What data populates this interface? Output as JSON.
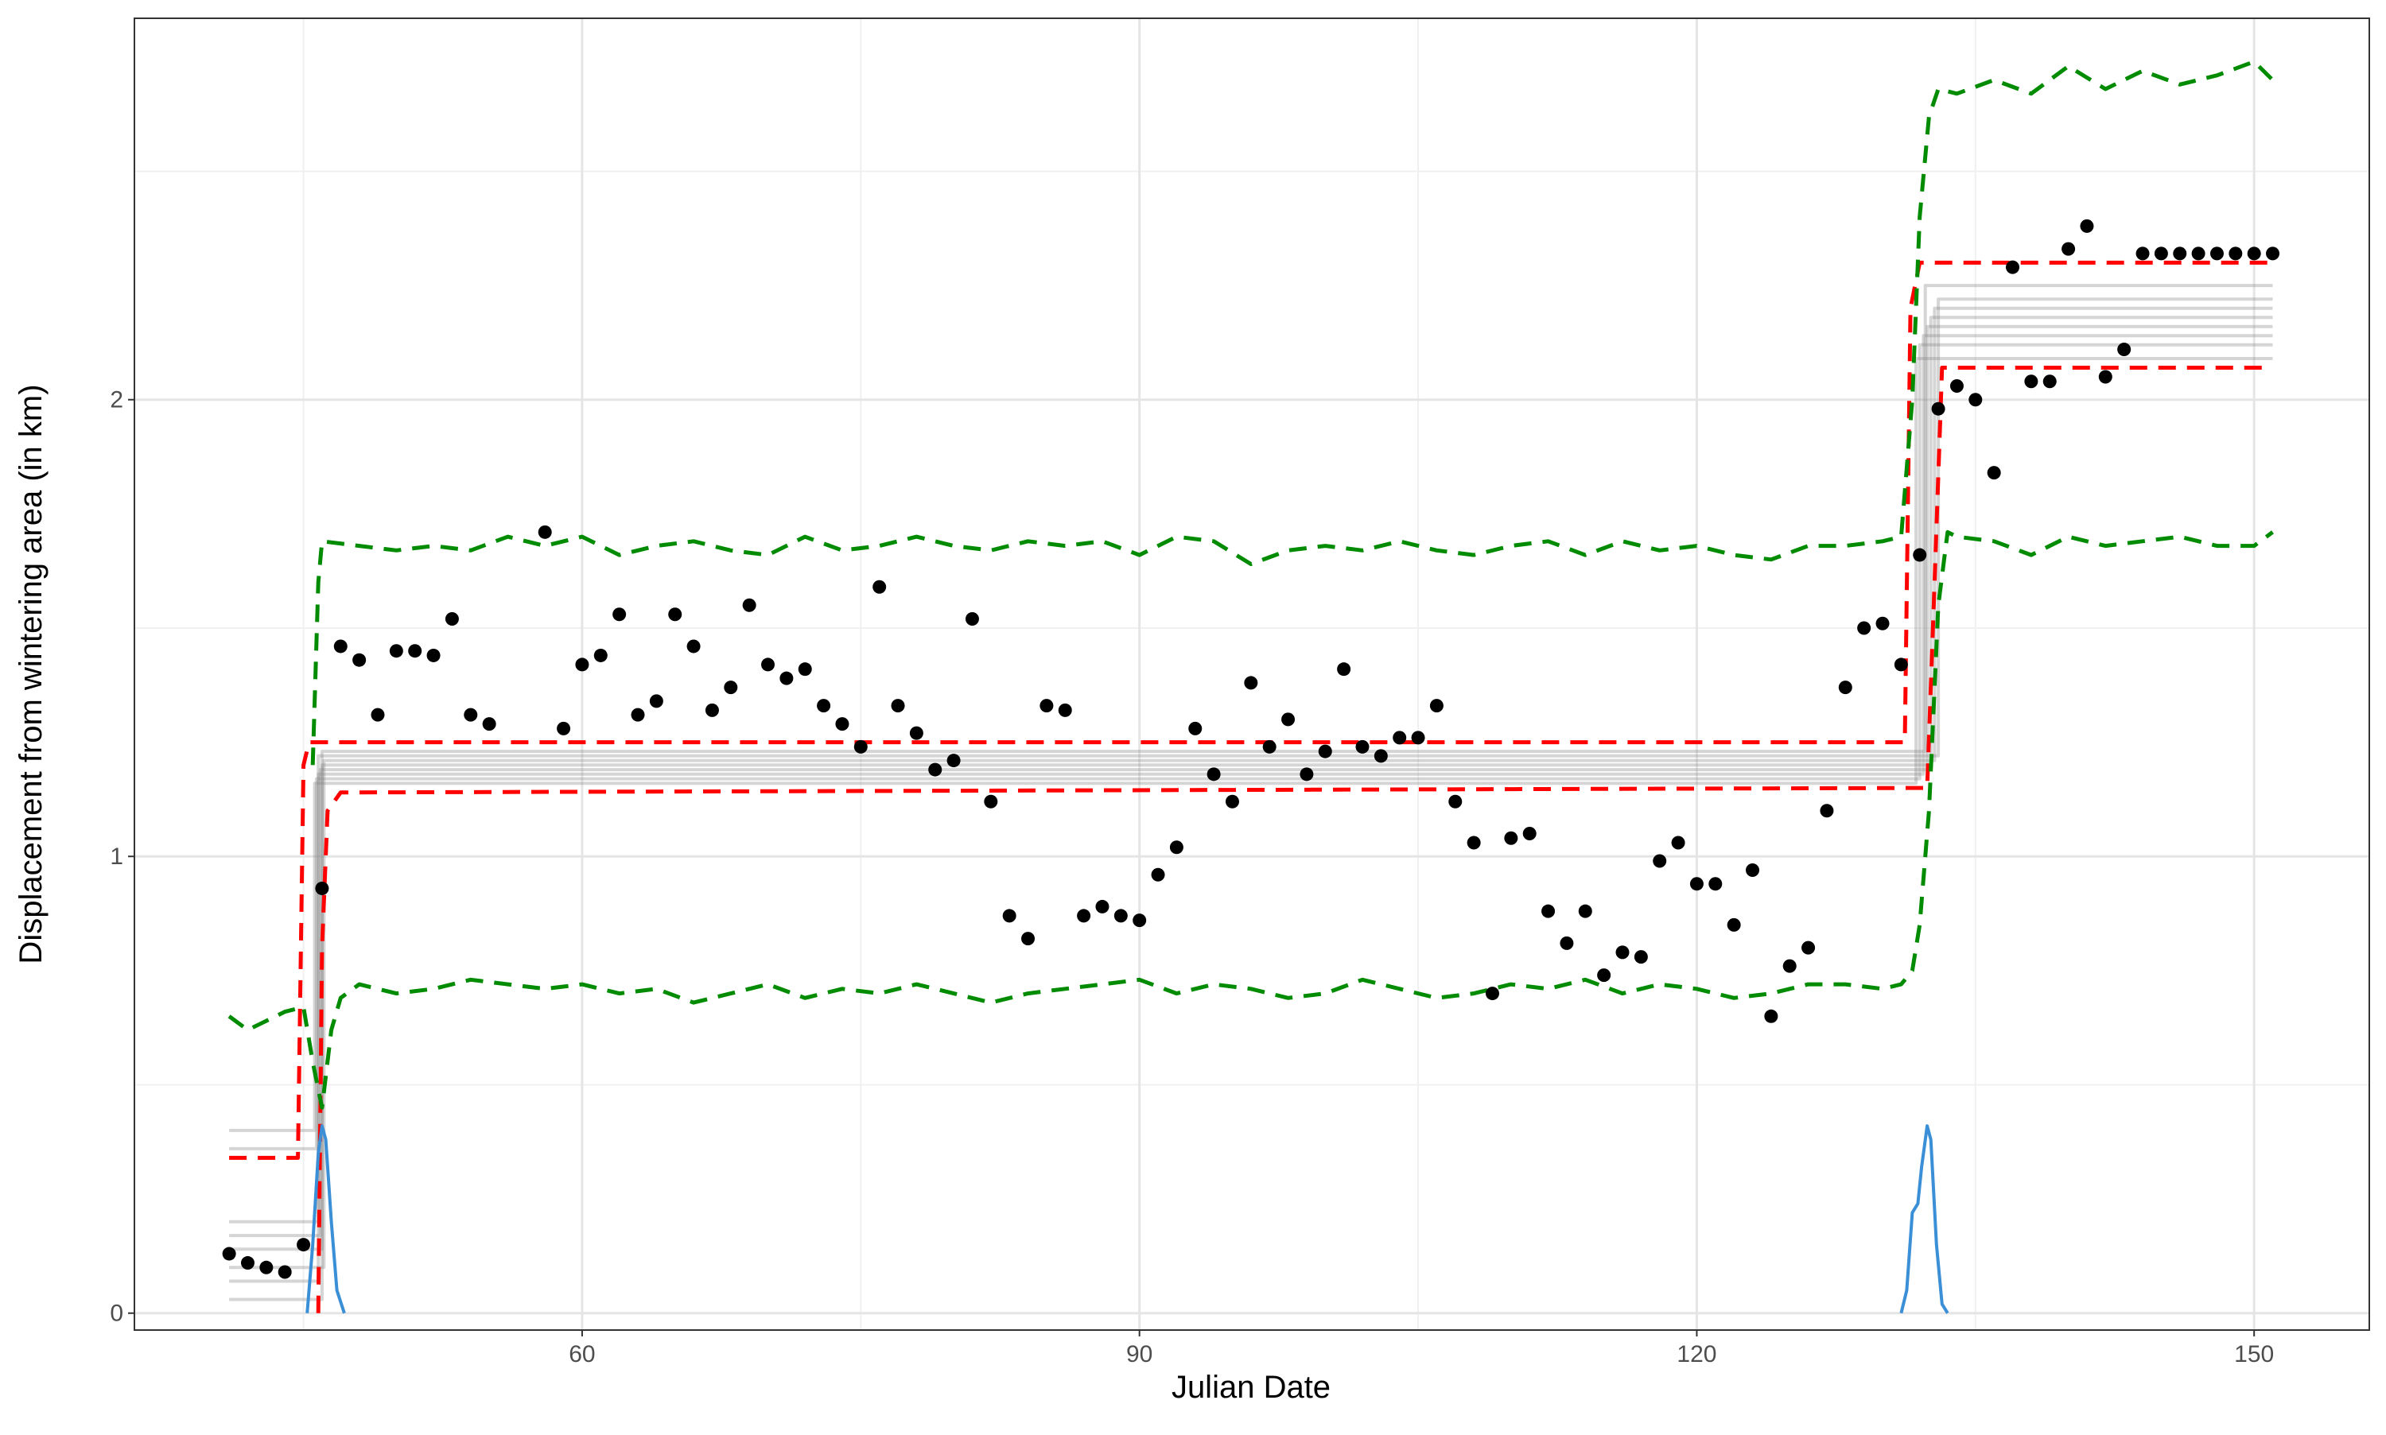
{
  "chart_data": {
    "type": "scatter",
    "x_label": "Julian Date",
    "y_label": "Displacement from wintering area (in km)",
    "xlim": [
      35.9,
      156.2
    ],
    "ylim": [
      -0.037,
      2.835
    ],
    "xticks": [
      60,
      90,
      120,
      150
    ],
    "yticks": [
      0,
      1,
      2
    ],
    "xminor": [
      45,
      75,
      105,
      135
    ],
    "yminor": [
      0.5,
      1.5,
      2.5
    ],
    "grid": true,
    "color": "#000000",
    "x": [
      41,
      42,
      43,
      44,
      45,
      46,
      47,
      48,
      49,
      50,
      51,
      52,
      53,
      54,
      55,
      58,
      59,
      60,
      61,
      62,
      63,
      64,
      65,
      66,
      67,
      68,
      69,
      70,
      71,
      72,
      73,
      74,
      75,
      76,
      77,
      78,
      79,
      80,
      81,
      82,
      83,
      84,
      85,
      86,
      87,
      88,
      89,
      90,
      91,
      92,
      93,
      94,
      95,
      96,
      97,
      98,
      99,
      100,
      101,
      102,
      103,
      104,
      105,
      106,
      107,
      108,
      109,
      110,
      111,
      112,
      113,
      114,
      115,
      116,
      117,
      118,
      119,
      120,
      121,
      122,
      123,
      124,
      125,
      126,
      127,
      128,
      129,
      130,
      131,
      132,
      133,
      134,
      135,
      136,
      137,
      138,
      139,
      140,
      141,
      142,
      143,
      144,
      145,
      146,
      147,
      148,
      149,
      150,
      151
    ],
    "values": [
      0.13,
      0.11,
      0.1,
      0.09,
      0.15,
      0.93,
      1.46,
      1.43,
      1.31,
      1.45,
      1.45,
      1.44,
      1.52,
      1.31,
      1.29,
      1.71,
      1.28,
      1.42,
      1.44,
      1.53,
      1.31,
      1.34,
      1.53,
      1.46,
      1.32,
      1.37,
      1.55,
      1.42,
      1.39,
      1.41,
      1.33,
      1.29,
      1.24,
      1.59,
      1.33,
      1.27,
      1.19,
      1.21,
      1.52,
      1.12,
      0.87,
      0.82,
      1.33,
      1.32,
      0.87,
      0.89,
      0.87,
      0.86,
      0.96,
      1.02,
      1.28,
      1.18,
      1.12,
      1.38,
      1.24,
      1.3,
      1.18,
      1.23,
      1.41,
      1.24,
      1.22,
      1.26,
      1.26,
      1.33,
      1.12,
      1.03,
      0.7,
      1.04,
      1.05,
      0.88,
      0.81,
      0.88,
      0.74,
      0.79,
      0.78,
      0.99,
      1.03,
      0.94,
      0.94,
      0.85,
      0.97,
      0.65,
      0.76,
      0.8,
      1.1,
      1.37,
      1.5,
      1.51,
      1.42,
      1.66,
      1.98,
      2.03,
      2.0,
      1.84,
      2.29,
      2.04,
      2.04,
      2.33,
      2.38,
      2.05,
      2.11,
      2.32,
      2.32,
      2.32,
      2.32,
      2.32,
      2.32,
      2.32,
      2.32
    ],
    "lines": [
      {
        "color": "#888888",
        "style": "thin",
        "x": [
          41,
          45.6,
          45.6,
          131.8,
          131.8,
          151
        ],
        "values": [
          0.4,
          0.4,
          1.16,
          1.16,
          2.09,
          2.09
        ]
      },
      {
        "color": "#888888",
        "style": "thin",
        "x": [
          41,
          45.7,
          45.7,
          132.0,
          132.0,
          151
        ],
        "values": [
          0.36,
          0.36,
          1.17,
          1.17,
          2.12,
          2.12
        ]
      },
      {
        "color": "#888888",
        "style": "thin",
        "x": [
          41,
          45.8,
          45.8,
          132.2,
          132.2,
          151
        ],
        "values": [
          0.2,
          0.2,
          1.18,
          1.18,
          2.14,
          2.14
        ]
      },
      {
        "color": "#888888",
        "style": "thin",
        "x": [
          41,
          45.9,
          45.9,
          132.4,
          132.4,
          151
        ],
        "values": [
          0.17,
          0.17,
          1.19,
          1.19,
          2.16,
          2.16
        ]
      },
      {
        "color": "#888888",
        "style": "thin",
        "x": [
          41,
          46.0,
          46.0,
          132.6,
          132.6,
          151
        ],
        "values": [
          0.14,
          0.14,
          1.2,
          1.2,
          2.18,
          2.18
        ]
      },
      {
        "color": "#888888",
        "style": "thin",
        "x": [
          41,
          46.1,
          46.1,
          132.8,
          132.8,
          151
        ],
        "values": [
          0.1,
          0.1,
          1.21,
          1.21,
          2.2,
          2.2
        ]
      },
      {
        "color": "#888888",
        "style": "thin",
        "x": [
          41,
          45.8,
          45.8,
          133.0,
          133.0,
          151
        ],
        "values": [
          0.07,
          0.07,
          1.22,
          1.22,
          2.22,
          2.22
        ]
      },
      {
        "color": "#888888",
        "style": "thin",
        "x": [
          41,
          46.0,
          46.0,
          132.3,
          132.3,
          151
        ],
        "values": [
          0.03,
          0.03,
          1.23,
          1.23,
          2.25,
          2.25
        ]
      },
      {
        "color": "#ff0000",
        "style": "dashed",
        "x": [
          41,
          44.7,
          45.0,
          45.3,
          131.2,
          131.5,
          132.0,
          151
        ],
        "values": [
          0.34,
          0.34,
          1.2,
          1.25,
          1.25,
          2.2,
          2.3,
          2.3
        ]
      },
      {
        "color": "#ff0000",
        "style": "dashed",
        "x": [
          45.8,
          46.0,
          46.3,
          47,
          132.4,
          132.8,
          133.2,
          151
        ],
        "values": [
          0.0,
          0.8,
          1.1,
          1.14,
          1.15,
          1.6,
          2.07,
          2.07
        ]
      },
      {
        "color": "#008b00",
        "style": "dashed",
        "x": [
          45.5,
          45.8,
          46,
          48,
          50,
          52,
          54,
          56,
          58,
          60,
          62,
          64,
          66,
          68,
          70,
          72,
          74,
          76,
          78,
          80,
          82,
          84,
          86,
          88,
          90,
          92,
          94,
          96,
          98,
          100,
          102,
          104,
          106,
          108,
          110,
          112,
          114,
          116,
          118,
          120,
          122,
          124,
          126,
          128,
          130,
          131,
          131.6,
          132,
          132.5,
          133,
          134,
          136,
          138,
          140,
          142,
          144,
          146,
          148,
          150,
          151
        ],
        "values": [
          1.2,
          1.6,
          1.69,
          1.68,
          1.67,
          1.68,
          1.67,
          1.7,
          1.68,
          1.7,
          1.66,
          1.68,
          1.69,
          1.67,
          1.66,
          1.7,
          1.67,
          1.68,
          1.7,
          1.68,
          1.67,
          1.69,
          1.68,
          1.69,
          1.66,
          1.7,
          1.69,
          1.64,
          1.67,
          1.68,
          1.67,
          1.69,
          1.67,
          1.66,
          1.68,
          1.69,
          1.66,
          1.69,
          1.67,
          1.68,
          1.66,
          1.65,
          1.68,
          1.68,
          1.69,
          1.7,
          2.0,
          2.4,
          2.62,
          2.68,
          2.67,
          2.7,
          2.67,
          2.73,
          2.68,
          2.72,
          2.69,
          2.71,
          2.74,
          2.7
        ]
      },
      {
        "color": "#008b00",
        "style": "dashed",
        "x": [
          41,
          42,
          43,
          44,
          45,
          45.5,
          46,
          46.5,
          47,
          48,
          50,
          52,
          54,
          56,
          58,
          60,
          62,
          64,
          66,
          68,
          70,
          72,
          74,
          76,
          78,
          80,
          82,
          84,
          86,
          88,
          90,
          92,
          94,
          96,
          98,
          100,
          102,
          104,
          106,
          108,
          110,
          112,
          114,
          116,
          118,
          120,
          122,
          124,
          126,
          128,
          130,
          131,
          131.6,
          132,
          132.5,
          133,
          133.5,
          134,
          136,
          138,
          140,
          142,
          144,
          146,
          148,
          150,
          151
        ],
        "values": [
          0.65,
          0.62,
          0.64,
          0.66,
          0.67,
          0.55,
          0.45,
          0.62,
          0.69,
          0.72,
          0.7,
          0.71,
          0.73,
          0.72,
          0.71,
          0.72,
          0.7,
          0.71,
          0.68,
          0.7,
          0.72,
          0.69,
          0.71,
          0.7,
          0.72,
          0.7,
          0.68,
          0.7,
          0.71,
          0.72,
          0.73,
          0.7,
          0.72,
          0.71,
          0.69,
          0.7,
          0.73,
          0.71,
          0.69,
          0.7,
          0.72,
          0.71,
          0.73,
          0.7,
          0.72,
          0.71,
          0.69,
          0.7,
          0.72,
          0.72,
          0.71,
          0.72,
          0.75,
          0.85,
          1.1,
          1.55,
          1.71,
          1.7,
          1.69,
          1.66,
          1.7,
          1.68,
          1.69,
          1.7,
          1.68,
          1.68,
          1.71
        ]
      },
      {
        "color": "#3a8fd6",
        "style": "solid",
        "x": [
          45.2,
          45.5,
          45.8,
          46,
          46.2,
          46.5,
          46.8,
          47.2
        ],
        "values": [
          0,
          0.15,
          0.35,
          0.41,
          0.38,
          0.2,
          0.05,
          0
        ]
      },
      {
        "color": "#3a8fd6",
        "style": "solid",
        "x": [
          131.0,
          131.3,
          131.6,
          131.9,
          132.1,
          132.4,
          132.6,
          132.9,
          133.2,
          133.5
        ],
        "values": [
          0,
          0.05,
          0.22,
          0.24,
          0.32,
          0.41,
          0.38,
          0.15,
          0.02,
          0
        ]
      }
    ]
  }
}
